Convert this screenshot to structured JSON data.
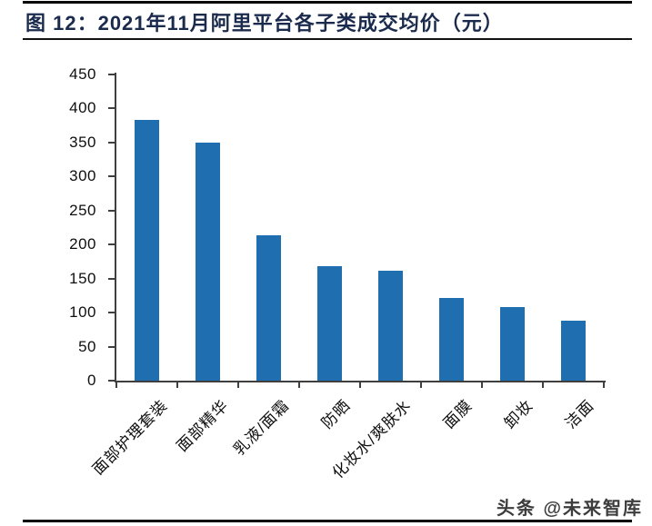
{
  "header": {
    "title": "图  12：2021年11月阿里平台各子类成交均价（元）"
  },
  "watermark": "头条 @未来智库",
  "colors": {
    "bar": "#1F6FB0",
    "title": "#1B2B4D",
    "axis": "#3F3F3F"
  },
  "chart_data": {
    "type": "bar",
    "title": "2021年11月阿里平台各子类成交均价（元）",
    "categories": [
      "面部护理套装",
      "面部精华",
      "乳液/面霜",
      "防晒",
      "化妆水/爽肤水",
      "面膜",
      "卸妆",
      "洁面"
    ],
    "values": [
      383,
      350,
      213,
      168,
      162,
      122,
      108,
      88
    ],
    "xlabel": "",
    "ylabel": "",
    "ylim": [
      0,
      450
    ],
    "ytick_step": 50,
    "ytick_labels": [
      "0",
      "50",
      "100",
      "150",
      "200",
      "250",
      "300",
      "350",
      "400",
      "450"
    ],
    "grid": false,
    "legend": null,
    "bar_color": "#1F6FB0"
  }
}
